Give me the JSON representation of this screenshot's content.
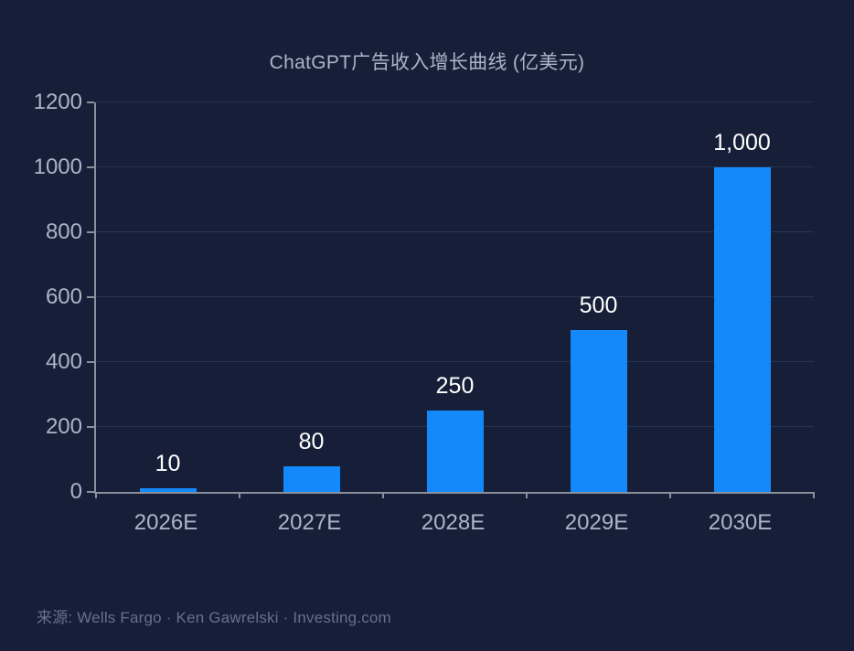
{
  "chart_data": {
    "type": "bar",
    "title": "ChatGPT广告收入增长曲线 (亿美元)",
    "categories": [
      "2026E",
      "2027E",
      "2028E",
      "2029E",
      "2030E"
    ],
    "values": [
      10,
      80,
      250,
      500,
      1000
    ],
    "value_labels": [
      "10",
      "80",
      "250",
      "500",
      "1,000"
    ],
    "xlabel": "",
    "ylabel": "",
    "ylim": [
      0,
      1200
    ],
    "yticks": [
      0,
      200,
      400,
      600,
      800,
      1000,
      1200
    ],
    "grid": true,
    "legend": "none",
    "source": "来源: Wells Fargo  ·  Ken Gawrelski  ·  Investing.com",
    "colors": {
      "background": "#161F37",
      "bar": "#1489FB",
      "grid": "rgba(96,126,182,0.22)",
      "axis": "#8A909C",
      "tick_label": "#A9B6CA",
      "value_label": "#FFFFFF",
      "title": "#A9B6CA",
      "source": "#66718A"
    }
  }
}
